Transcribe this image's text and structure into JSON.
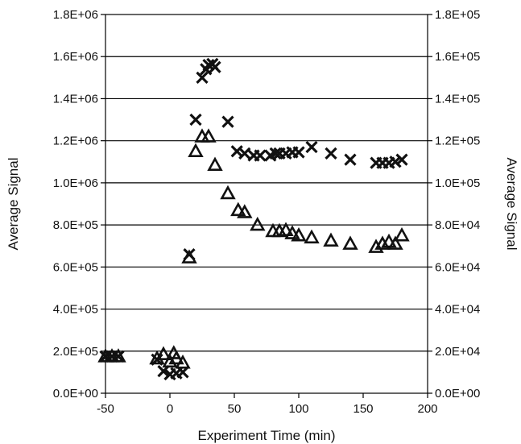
{
  "chart_data": {
    "type": "scatter",
    "title": "",
    "xlabel": "Experiment Time (min)",
    "ylabel": "Average Signal",
    "y2label": "Average Signal",
    "xlim": [
      -50,
      200
    ],
    "ylim": [
      0,
      1800000
    ],
    "y2lim": [
      0,
      180000
    ],
    "x_ticks": [
      "-50",
      "0",
      "50",
      "100",
      "150",
      "200"
    ],
    "x_tick_values": [
      -50,
      0,
      50,
      100,
      150,
      200
    ],
    "y_ticks": [
      "0.0E+00",
      "2.0E+05",
      "4.0E+05",
      "6.0E+05",
      "8.0E+05",
      "1.0E+06",
      "1.2E+06",
      "1.4E+06",
      "1.6E+06",
      "1.8E+06"
    ],
    "y2_ticks": [
      "0.0E+00",
      "2.0E+04",
      "4.0E+04",
      "6.0E+04",
      "8.0E+04",
      "1.0E+05",
      "1.2E+05",
      "1.4E+05",
      "1.6E+05",
      "1.8E+05"
    ],
    "y_tick_values": [
      0,
      200000,
      400000,
      600000,
      800000,
      1000000,
      1200000,
      1400000,
      1600000,
      1800000
    ],
    "grid": "horizontal",
    "legend": "none",
    "series": [
      {
        "marker": "x",
        "axis": "left",
        "color": "#111111",
        "x": [
          -50,
          -45,
          -40,
          -10,
          -5,
          0,
          5,
          10,
          15,
          20,
          25,
          28,
          30,
          33,
          35,
          45,
          52,
          58,
          65,
          70,
          78,
          82,
          85,
          90,
          95,
          100,
          110,
          125,
          140,
          160,
          165,
          170,
          175,
          180
        ],
        "y": [
          175000,
          175000,
          175000,
          160000,
          105000,
          90000,
          95000,
          100000,
          660000,
          1300000,
          1500000,
          1540000,
          1560000,
          1565000,
          1550000,
          1290000,
          1150000,
          1140000,
          1130000,
          1130000,
          1130000,
          1140000,
          1140000,
          1140000,
          1145000,
          1145000,
          1170000,
          1140000,
          1110000,
          1095000,
          1095000,
          1095000,
          1100000,
          1110000
        ]
      },
      {
        "marker": "triangle",
        "axis": "left",
        "color": "#111111",
        "x": [
          -50,
          -45,
          -40,
          -10,
          -5,
          0,
          3,
          5,
          10,
          15,
          20,
          25,
          30,
          35,
          45,
          53,
          58,
          68,
          80,
          85,
          90,
          95,
          100,
          110,
          125,
          140,
          160,
          165,
          170,
          175,
          180
        ],
        "y": [
          175000,
          175000,
          175000,
          165000,
          185000,
          150000,
          190000,
          165000,
          145000,
          645000,
          1150000,
          1220000,
          1220000,
          1085000,
          950000,
          870000,
          860000,
          800000,
          770000,
          770000,
          775000,
          760000,
          750000,
          740000,
          725000,
          710000,
          695000,
          710000,
          720000,
          710000,
          750000
        ]
      }
    ]
  }
}
